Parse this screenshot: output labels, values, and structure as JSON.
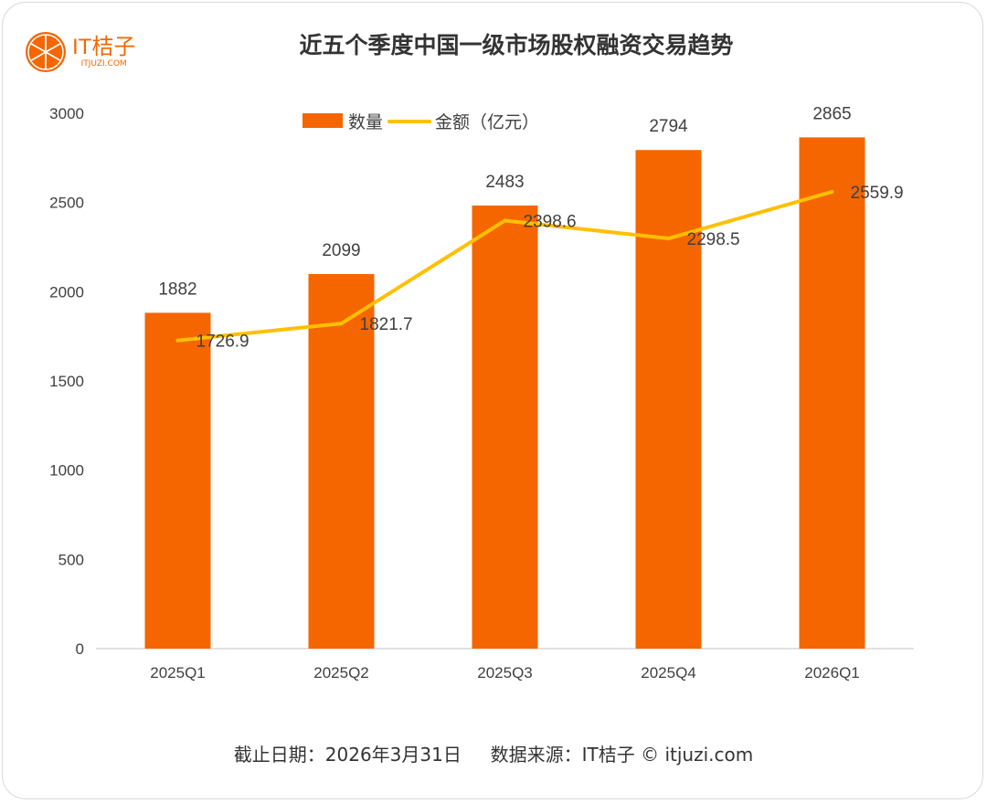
{
  "logo": {
    "main": "IT桔子",
    "sub": "ITJUZI.COM"
  },
  "colors": {
    "bar": "#F56600",
    "line": "#FFC000",
    "axis": "#d9d9d9",
    "text": "#404040"
  },
  "footer": "截止日期：2026年3月31日     数据来源：IT桔子 © itjuzi.com",
  "chart_data": {
    "type": "bar+line",
    "title": "近五个季度中国一级市场股权融资交易趋势",
    "categories": [
      "2025Q1",
      "2025Q2",
      "2025Q3",
      "2025Q4",
      "2026Q1"
    ],
    "series": [
      {
        "name": "数量",
        "type": "bar",
        "values": [
          1882,
          2099,
          2483,
          2794,
          2865
        ]
      },
      {
        "name": "金额（亿元）",
        "type": "line",
        "values": [
          1726.9,
          1821.7,
          2398.6,
          2298.5,
          2559.9
        ]
      }
    ],
    "ylim": [
      0,
      3000
    ],
    "yticks": [
      0,
      500,
      1000,
      1500,
      2000,
      2500,
      3000
    ],
    "grid": false,
    "legend": "top"
  }
}
